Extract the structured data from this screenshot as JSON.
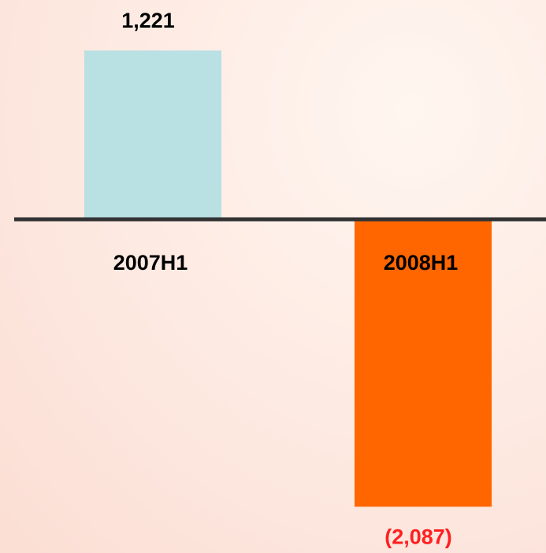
{
  "chart_data": {
    "type": "bar",
    "categories": [
      "2007H1",
      "2008H1"
    ],
    "values": [
      1221,
      -2087
    ],
    "value_labels": [
      "1,221",
      "(2,087)"
    ],
    "colors": [
      "#b9e0e3",
      "#ff6600"
    ],
    "value_label_colors": [
      "#000000",
      "#ff2020"
    ]
  }
}
